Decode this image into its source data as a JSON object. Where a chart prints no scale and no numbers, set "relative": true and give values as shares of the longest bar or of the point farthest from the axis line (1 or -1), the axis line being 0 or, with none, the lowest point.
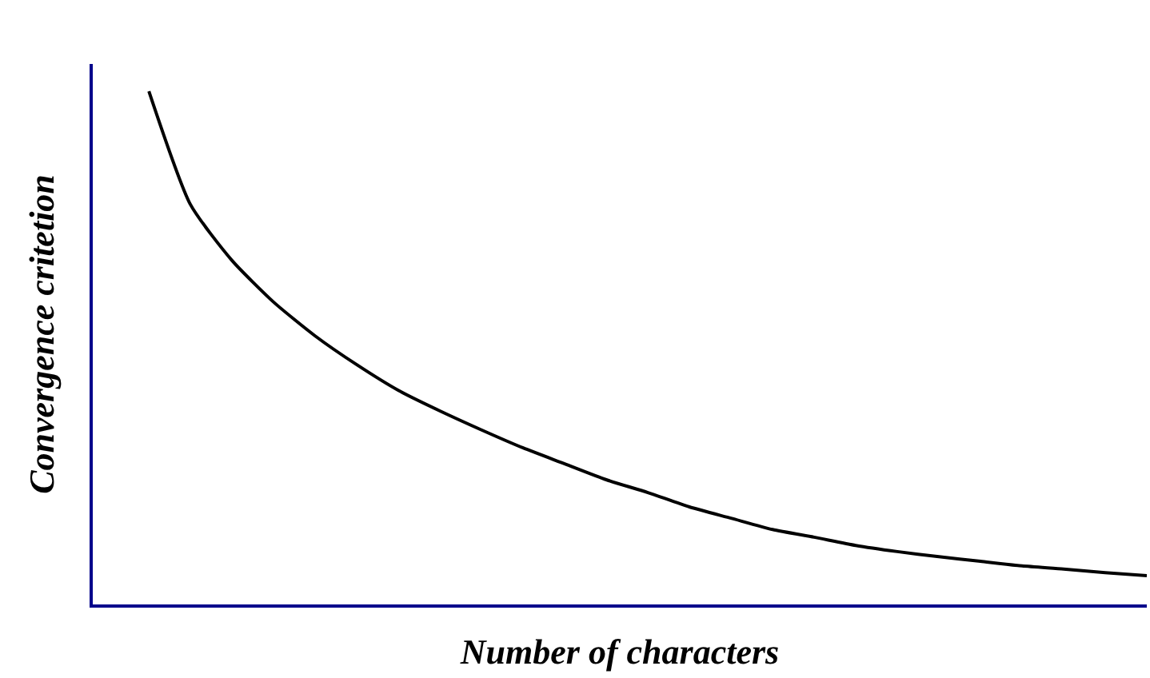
{
  "chart_data": {
    "type": "line",
    "relative": true,
    "xlabel": "Number of characters",
    "ylabel": "Convergence critetion",
    "categories": [
      null,
      null,
      null,
      null,
      null,
      null,
      null,
      null,
      null,
      null,
      null,
      null,
      null,
      null,
      null,
      null,
      null,
      null,
      null,
      null,
      null,
      null,
      null,
      null,
      null
    ],
    "series": [
      {
        "color": "#000000",
        "values": [
          1.0,
          0.779,
          0.67,
          0.589,
          0.523,
          0.467,
          0.417,
          0.377,
          0.34,
          0.305,
          0.274,
          0.243,
          0.218,
          0.19,
          0.168,
          0.146,
          0.131,
          0.115,
          0.103,
          0.093,
          0.084,
          0.075,
          0.069,
          0.062,
          0.056
        ]
      }
    ]
  }
}
